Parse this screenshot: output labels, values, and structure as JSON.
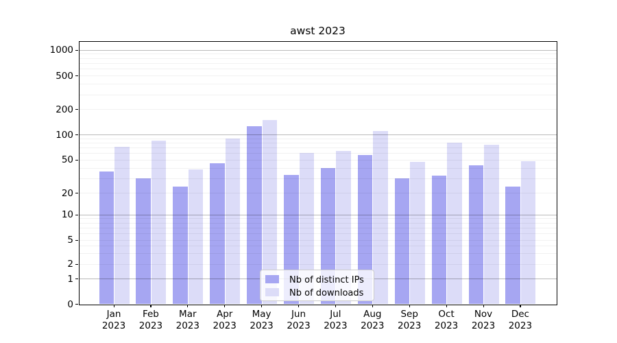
{
  "chart_data": {
    "type": "bar",
    "title": "awst 2023",
    "categories": [
      "Jan",
      "Feb",
      "Mar",
      "Apr",
      "May",
      "Jun",
      "Jul",
      "Aug",
      "Sep",
      "Oct",
      "Nov",
      "Dec"
    ],
    "category_year": "2023",
    "series": [
      {
        "name": "Nb of distinct IPs",
        "color": "#a6a6f2",
        "values": [
          36,
          30,
          24,
          45,
          125,
          33,
          40,
          57,
          30,
          32,
          43,
          24
        ]
      },
      {
        "name": "Nb of downloads",
        "color": "#dcdcf8",
        "values": [
          72,
          85,
          38,
          90,
          150,
          60,
          64,
          110,
          47,
          80,
          75,
          48
        ]
      }
    ],
    "yscale": "log-like",
    "y_ticks": [
      0,
      1,
      2,
      5,
      10,
      20,
      50,
      100,
      200,
      500,
      1000
    ],
    "ylim": [
      0,
      1300
    ],
    "grid": "both",
    "legend_position": "lower center"
  }
}
